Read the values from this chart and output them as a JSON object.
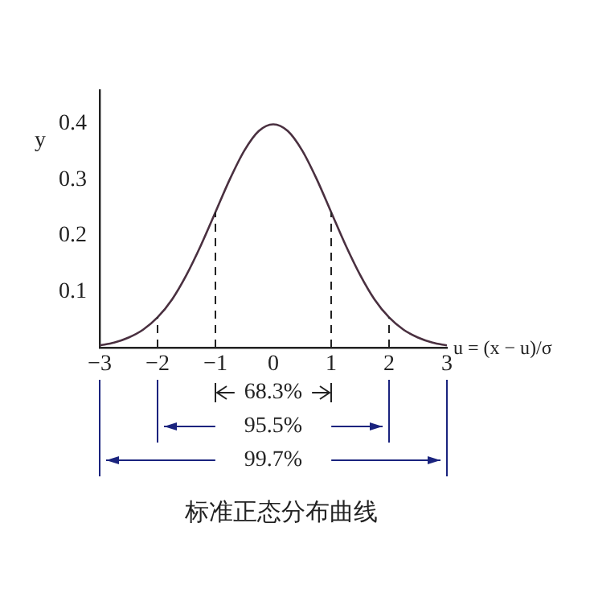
{
  "chart_data": {
    "type": "line",
    "title": "标准正态分布曲线",
    "xlabel": "u = (x − u)/σ",
    "ylabel": "y",
    "x": [
      -3,
      -2.75,
      -2.5,
      -2.25,
      -2,
      -1.75,
      -1.5,
      -1.25,
      -1,
      -0.75,
      -0.5,
      -0.25,
      0,
      0.25,
      0.5,
      0.75,
      1,
      1.25,
      1.5,
      1.75,
      2,
      2.25,
      2.5,
      2.75,
      3
    ],
    "series": [
      {
        "color": "#4a3040",
        "values": [
          0.004,
          0.009,
          0.018,
          0.032,
          0.054,
          0.086,
          0.13,
          0.183,
          0.242,
          0.301,
          0.352,
          0.387,
          0.399,
          0.387,
          0.352,
          0.301,
          0.242,
          0.183,
          0.13,
          0.086,
          0.054,
          0.032,
          0.018,
          0.009,
          0.004
        ]
      }
    ],
    "xlim": [
      -3,
      3
    ],
    "xticks": [
      {
        "value": -3,
        "label": "−3"
      },
      {
        "value": -2,
        "label": "−2"
      },
      {
        "value": -1,
        "label": "−1"
      },
      0,
      1,
      2,
      3
    ],
    "ylim": [
      0,
      0.46
    ],
    "yticks": [
      0.1,
      0.2,
      0.3,
      0.4
    ],
    "ref_lines": [
      {
        "axis": "x",
        "value": -2,
        "line_style": "dashed"
      },
      {
        "axis": "x",
        "value": -1,
        "line_style": "dashed"
      },
      {
        "axis": "x",
        "value": 1,
        "line_style": "dashed"
      },
      {
        "axis": "x",
        "value": 2,
        "line_style": "dashed"
      }
    ],
    "annotations": [
      "68.3%",
      "95.5%",
      "99.7%"
    ],
    "grid": false,
    "legend": false,
    "marker": "none",
    "line_style": "solid"
  }
}
